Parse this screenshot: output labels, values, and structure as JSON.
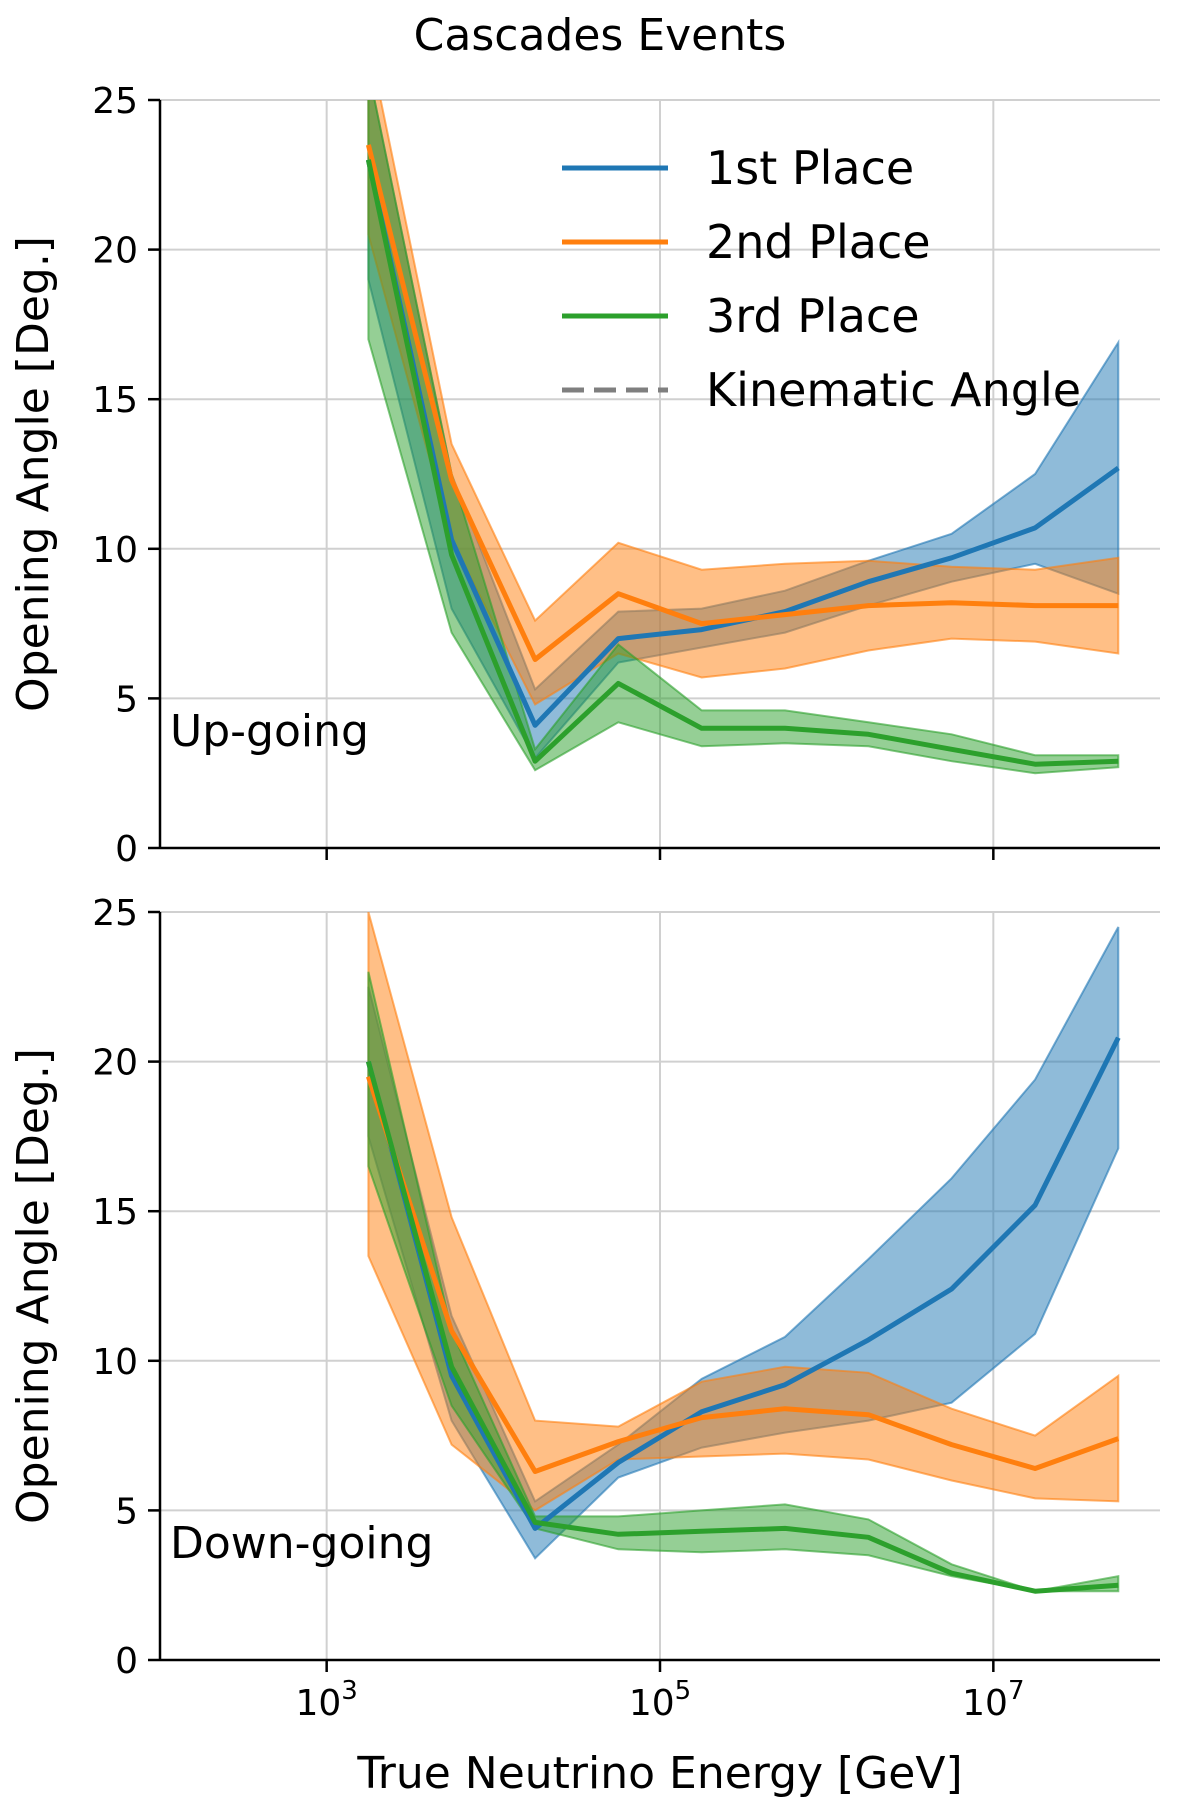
{
  "title": "Cascades Events",
  "colors": {
    "1st Place": "#1f77b4",
    "2nd Place": "#ff7f0e",
    "3rd Place": "#2ca02c",
    "Kinematic Angle": "#7f7f7f"
  },
  "legend": {
    "placement": "top-right of upper panel",
    "entries": [
      {
        "label": "1st Place",
        "style": "solid",
        "color": "#1f77b4"
      },
      {
        "label": "2nd Place",
        "style": "solid",
        "color": "#ff7f0e"
      },
      {
        "label": "3rd Place",
        "style": "solid",
        "color": "#2ca02c"
      },
      {
        "label": "Kinematic Angle",
        "style": "dashed",
        "color": "#7f7f7f"
      }
    ]
  },
  "chart_data": [
    {
      "type": "line",
      "panel_label": "Up-going",
      "ylabel": "Opening Angle [Deg.]",
      "xlabel": "",
      "xscale": "log",
      "xlim": [
        100.0,
        100000000.0
      ],
      "ylim": [
        0,
        25
      ],
      "yticks": [
        0,
        5,
        10,
        15,
        20,
        25
      ],
      "xticks": [],
      "grid": true,
      "x": [
        1780.0,
        5620.0,
        17800.0,
        56200.0,
        178000.0,
        562000.0,
        1780000.0,
        5620000.0,
        17800000.0,
        56200000.0
      ],
      "series": [
        {
          "name": "1st Place",
          "values": [
            23.0,
            10.3,
            4.1,
            7.0,
            7.3,
            7.9,
            8.9,
            9.7,
            10.7,
            12.7
          ],
          "lower": [
            19.0,
            8.0,
            3.0,
            6.2,
            6.7,
            7.2,
            8.1,
            8.9,
            9.5,
            8.5
          ],
          "upper": [
            26.0,
            12.5,
            5.3,
            7.9,
            8.0,
            8.6,
            9.6,
            10.5,
            12.5,
            16.9
          ]
        },
        {
          "name": "2nd Place",
          "values": [
            23.5,
            12.3,
            6.3,
            8.5,
            7.5,
            7.8,
            8.1,
            8.2,
            8.1,
            8.1
          ],
          "lower": [
            20.5,
            10.3,
            4.8,
            6.5,
            5.7,
            6.0,
            6.6,
            7.0,
            6.9,
            6.5
          ],
          "upper": [
            27.0,
            13.5,
            7.6,
            10.2,
            9.3,
            9.5,
            9.6,
            9.4,
            9.3,
            9.7
          ]
        },
        {
          "name": "3rd Place",
          "values": [
            23.0,
            9.8,
            2.9,
            5.5,
            4.0,
            4.0,
            3.8,
            3.3,
            2.8,
            2.9
          ],
          "lower": [
            17.0,
            7.2,
            2.6,
            4.2,
            3.4,
            3.5,
            3.4,
            2.9,
            2.5,
            2.7
          ],
          "upper": [
            26.0,
            12.5,
            3.3,
            6.8,
            4.6,
            4.6,
            4.2,
            3.8,
            3.1,
            3.1
          ]
        }
      ]
    },
    {
      "type": "line",
      "panel_label": "Down-going",
      "ylabel": "Opening Angle [Deg.]",
      "xlabel": "True Neutrino Energy [GeV]",
      "xscale": "log",
      "xlim": [
        100.0,
        100000000.0
      ],
      "ylim": [
        0,
        25
      ],
      "yticks": [
        0,
        5,
        10,
        15,
        20,
        25
      ],
      "xticks": [
        1000.0,
        100000.0,
        10000000.0
      ],
      "xtick_labels": [
        {
          "base": "10",
          "exp": "3"
        },
        {
          "base": "10",
          "exp": "5"
        },
        {
          "base": "10",
          "exp": "7"
        }
      ],
      "grid": true,
      "x": [
        1780.0,
        5620.0,
        17800.0,
        56200.0,
        178000.0,
        562000.0,
        1780000.0,
        5620000.0,
        17800000.0,
        56200000.0
      ],
      "series": [
        {
          "name": "1st Place",
          "values": [
            20.0,
            9.5,
            4.4,
            6.6,
            8.3,
            9.2,
            10.7,
            12.4,
            15.2,
            20.8
          ],
          "lower": [
            17.5,
            8.0,
            3.4,
            6.1,
            7.1,
            7.6,
            8.0,
            8.6,
            10.9,
            17.1
          ],
          "upper": [
            22.5,
            11.5,
            5.3,
            7.2,
            9.4,
            10.8,
            13.4,
            16.1,
            19.4,
            24.5
          ]
        },
        {
          "name": "2nd Place",
          "values": [
            19.5,
            11.0,
            6.3,
            7.3,
            8.1,
            8.4,
            8.2,
            7.2,
            6.4,
            7.4
          ],
          "lower": [
            13.5,
            7.2,
            5.0,
            6.7,
            6.8,
            6.9,
            6.7,
            6.0,
            5.4,
            5.3
          ],
          "upper": [
            25.0,
            14.8,
            8.0,
            7.8,
            9.3,
            9.8,
            9.6,
            8.4,
            7.5,
            9.5
          ]
        },
        {
          "name": "3rd Place",
          "values": [
            20.0,
            9.8,
            4.6,
            4.2,
            4.3,
            4.4,
            4.1,
            2.9,
            2.3,
            2.5
          ],
          "lower": [
            16.5,
            8.5,
            4.4,
            3.7,
            3.6,
            3.7,
            3.5,
            2.8,
            2.3,
            2.3
          ],
          "upper": [
            23.0,
            11.0,
            4.8,
            4.8,
            5.0,
            5.2,
            4.7,
            3.2,
            2.3,
            2.8
          ]
        }
      ]
    }
  ]
}
